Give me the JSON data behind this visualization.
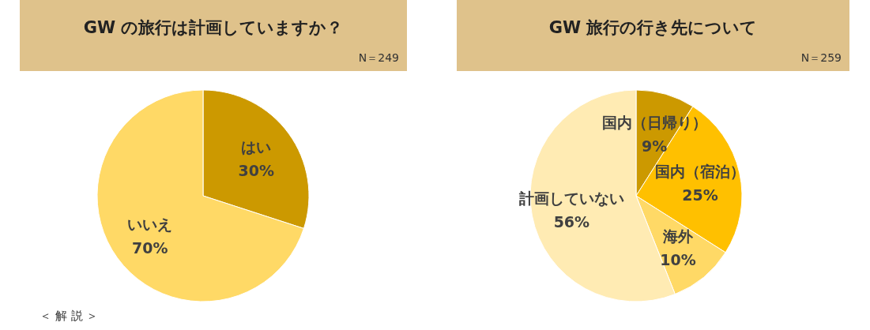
{
  "chart_data": [
    {
      "type": "pie",
      "title": "GW の旅行は計画していますか？",
      "annotations": [
        "N＝249",
        "＜ 解 説 ＞"
      ],
      "categories": [
        "はい",
        "いいえ"
      ],
      "values": [
        30,
        70
      ],
      "colors": [
        "#cc9900",
        "#ffd966"
      ],
      "value_labels": [
        "30%",
        "70%"
      ]
    },
    {
      "type": "pie",
      "title": "GW 旅行の行き先について",
      "annotations": [
        "N＝259"
      ],
      "categories": [
        "国内（日帰り）",
        "国内（宿泊）",
        "海外",
        "計画していない"
      ],
      "values": [
        9,
        25,
        10,
        56
      ],
      "colors": [
        "#cc9900",
        "#ffc000",
        "#ffd966",
        "#ffebb3"
      ],
      "value_labels": [
        "9%",
        "25%",
        "10%",
        "56%"
      ]
    }
  ]
}
